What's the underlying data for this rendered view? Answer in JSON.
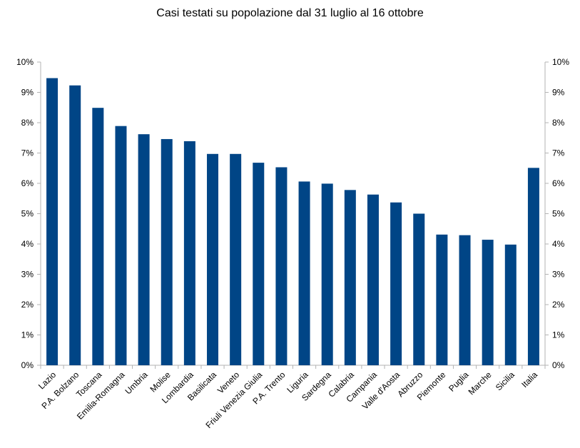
{
  "chart_data": {
    "type": "bar",
    "title": "Casi testati su popolazione dal 31 luglio al 16 ottobre",
    "categories": [
      "Lazio",
      "P.A. Bolzano",
      "Toscana",
      "Emilia-Romagna",
      "Umbria",
      "Molise",
      "Lombardia",
      "Basilicata",
      "Veneto",
      "Friuli Venezia Giulia",
      "P.A. Trento",
      "Liguria",
      "Sardegna",
      "Calabria",
      "Campania",
      "Valle d'Aosta",
      "Abruzzo",
      "Piemonte",
      "Puglia",
      "Marche",
      "Sicilia",
      "Italia"
    ],
    "values": [
      9.47,
      9.23,
      8.49,
      7.89,
      7.62,
      7.46,
      7.39,
      6.97,
      6.97,
      6.68,
      6.53,
      6.06,
      5.99,
      5.78,
      5.63,
      5.37,
      5.0,
      4.31,
      4.29,
      4.14,
      3.98,
      6.51
    ],
    "yticks": [
      "0%",
      "1%",
      "2%",
      "3%",
      "4%",
      "5%",
      "6%",
      "7%",
      "8%",
      "9%",
      "10%"
    ],
    "ylim": [
      0,
      10
    ],
    "unit": "%",
    "grid": false,
    "legend": "none",
    "bar_color": "#004586",
    "secondary_y_axis": true
  }
}
